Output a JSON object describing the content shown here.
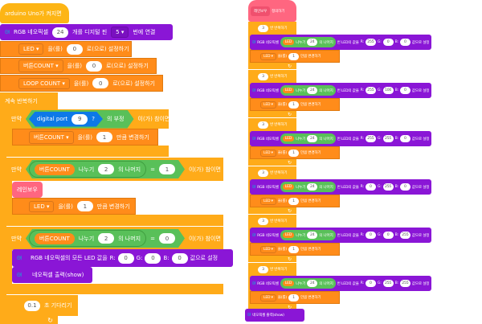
{
  "main_script": {
    "hat": "arduino Uno가 켜지면",
    "neo_connect": {
      "a": "RGB 네오픽셀",
      "count": "24",
      "b": "개를 디지털 핀",
      "pin": "5 ▾",
      "c": "번에 연결"
    },
    "set_led": {
      "var": "LED ▾",
      "a": "을(를)",
      "val": "0",
      "b": "로(으로) 설정하기"
    },
    "set_btn": {
      "var": "버튼COUNT ▾",
      "a": "을(를)",
      "val": "0",
      "b": "로(으로) 설정하기"
    },
    "set_loop": {
      "var": "LOOP COUNT ▾",
      "a": "을(를)",
      "val": "0",
      "b": "로(으로) 설정하기"
    },
    "forever": "계속 반복하기",
    "if1": {
      "if": "만약",
      "sensor": "digital port",
      "port": "9",
      "q": "?",
      "not": "의 부정",
      "then": "이(가) 참이면"
    },
    "change_btn": {
      "var": "버튼COUNT ▾",
      "a": "을(를)",
      "val": "1",
      "b": "만큼 변경하기"
    },
    "if2": {
      "if": "만약",
      "var": "버튼COUNT",
      "div": "나누기",
      "n": "2",
      "mod": "의 나머지",
      "eq": "=",
      "val": "1",
      "then": "이(가) 참이면"
    },
    "rainbow_call": "레인보우",
    "change_led": {
      "var": "LED ▾",
      "a": "을(를)",
      "val": "1",
      "b": "만큼 변경하기"
    },
    "if3": {
      "if": "만약",
      "var": "버튼COUNT",
      "div": "나누기",
      "n": "2",
      "mod": "의 나머지",
      "eq": "=",
      "val": "0",
      "then": "이(가) 참이면"
    },
    "set_all": {
      "a": "RGB 네오픽셀의 모든 LED 값을",
      "r": "R:",
      "rv": "0",
      "g": "G:",
      "gv": "0",
      "bl": "B:",
      "bv": "0",
      "b": "값으로 설정"
    },
    "show": "네오픽셀 출력(show)",
    "wait": {
      "val": "0.1",
      "a": "초 기다리기"
    },
    "loop_arrow": "↻"
  },
  "rainbow_def": {
    "name": "레인보우",
    "define": "정의하기",
    "repeat_times": "3",
    "repeat_label": "번 반복하기",
    "neo": "RGB 네오픽셀",
    "led": "LED",
    "div": "나누기",
    "n": "24",
    "mod": "의 나머지",
    "val_label": "번 LED의 값을",
    "r": "R:",
    "g": "G:",
    "b": "B:",
    "set": "값으로 설정",
    "change": {
      "var": "LED ▾",
      "a": "을(를)",
      "val": "1",
      "b": "만큼 변경하기"
    },
    "colors": [
      {
        "r": "255",
        "g": "0",
        "b": "0"
      },
      {
        "r": "255",
        "g": "100",
        "b": "0"
      },
      {
        "r": "255",
        "g": "255",
        "b": "0"
      },
      {
        "r": "0",
        "g": "255",
        "b": "0"
      },
      {
        "r": "0",
        "g": "0",
        "b": "255"
      },
      {
        "r": "0",
        "g": "255",
        "b": "255"
      }
    ],
    "show": "네오픽셀 출력(show)"
  },
  "icons": {
    "neopixel": "neopixel-icon",
    "arrow": "loop-arrow-icon"
  }
}
